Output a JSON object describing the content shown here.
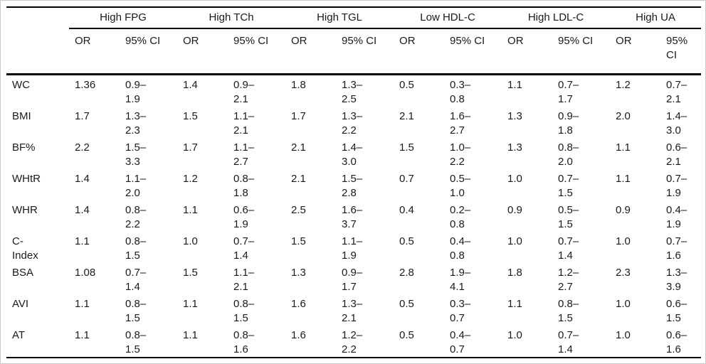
{
  "chart_data": {
    "type": "table",
    "title": "",
    "column_groups": [
      "High FPG",
      "High TCh",
      "High TGL",
      "Low HDL-C",
      "High LDL-C",
      "High UA"
    ],
    "subcolumns": [
      "OR",
      "95% CI"
    ],
    "rows": [
      {
        "label": "WC",
        "cells": [
          {
            "or": "1.36",
            "ci": "0.9–1.9"
          },
          {
            "or": "1.4",
            "ci": "0.9–2.1"
          },
          {
            "or": "1.8",
            "ci": "1.3–2.5"
          },
          {
            "or": "0.5",
            "ci": "0.3–0.8"
          },
          {
            "or": "1.1",
            "ci": "0.7–1.7"
          },
          {
            "or": "1.2",
            "ci": "0.7–2.1"
          }
        ]
      },
      {
        "label": "BMI",
        "cells": [
          {
            "or": "1.7",
            "ci": "1.3–2.3"
          },
          {
            "or": "1.5",
            "ci": "1.1–2.1"
          },
          {
            "or": "1.7",
            "ci": "1.3–2.2"
          },
          {
            "or": "2.1",
            "ci": "1.6–2.7"
          },
          {
            "or": "1.3",
            "ci": "0.9–1.8"
          },
          {
            "or": "2.0",
            "ci": "1.4–3.0"
          }
        ]
      },
      {
        "label": "BF%",
        "cells": [
          {
            "or": "2.2",
            "ci": "1.5–3.3"
          },
          {
            "or": "1.7",
            "ci": "1.1–2.7"
          },
          {
            "or": "2.1",
            "ci": "1.4–3.0"
          },
          {
            "or": "1.5",
            "ci": "1.0–2.2"
          },
          {
            "or": "1.3",
            "ci": "0.8–2.0"
          },
          {
            "or": "1.1",
            "ci": "0.6–2.1"
          }
        ]
      },
      {
        "label": "WHtR",
        "cells": [
          {
            "or": "1.4",
            "ci": "1.1–2.0"
          },
          {
            "or": "1.2",
            "ci": "0.8–1.8"
          },
          {
            "or": "2.1",
            "ci": "1.5–2.8"
          },
          {
            "or": "0.7",
            "ci": "0.5–1.0"
          },
          {
            "or": "1.0",
            "ci": "0.7–1.5"
          },
          {
            "or": "1.1",
            "ci": "0.7–1.9"
          }
        ]
      },
      {
        "label": "WHR",
        "cells": [
          {
            "or": "1.4",
            "ci": "0.8–2.2"
          },
          {
            "or": "1.1",
            "ci": "0.6–1.9"
          },
          {
            "or": "2.5",
            "ci": "1.6–3.7"
          },
          {
            "or": "0.4",
            "ci": "0.2–0.8"
          },
          {
            "or": "0.9",
            "ci": "0.5–1.5"
          },
          {
            "or": "0.9",
            "ci": "0.4–1.9"
          }
        ]
      },
      {
        "label": "C-Index",
        "cells": [
          {
            "or": "1.1",
            "ci": "0.8–1.5"
          },
          {
            "or": "1.0",
            "ci": "0.7–1.4"
          },
          {
            "or": "1.5",
            "ci": "1.1–1.9"
          },
          {
            "or": "0.5",
            "ci": "0.4–0.8"
          },
          {
            "or": "1.0",
            "ci": "0.7–1.4"
          },
          {
            "or": "1.0",
            "ci": "0.7–1.6"
          }
        ]
      },
      {
        "label": "BSA",
        "cells": [
          {
            "or": "1.08",
            "ci": "0.7–1.4"
          },
          {
            "or": "1.5",
            "ci": "1.1–2.1"
          },
          {
            "or": "1.3",
            "ci": "0.9–1.7"
          },
          {
            "or": "2.8",
            "ci": "1.9–4.1"
          },
          {
            "or": "1.8",
            "ci": "1.2–2.7"
          },
          {
            "or": "2.3",
            "ci": "1.3–3.9"
          }
        ]
      },
      {
        "label": "AVI",
        "cells": [
          {
            "or": "1.1",
            "ci": "0.8–1.5"
          },
          {
            "or": "1.1",
            "ci": "0.8–1.5"
          },
          {
            "or": "1.6",
            "ci": "1.3–2.1"
          },
          {
            "or": "0.5",
            "ci": "0.3–0.7"
          },
          {
            "or": "1.1",
            "ci": "0.8–1.5"
          },
          {
            "or": "1.0",
            "ci": "0.6–1.5"
          }
        ]
      },
      {
        "label": "AT",
        "cells": [
          {
            "or": "1.1",
            "ci": "0.8–1.5"
          },
          {
            "or": "1.1",
            "ci": "0.8–1.6"
          },
          {
            "or": "1.6",
            "ci": "1.2–2.2"
          },
          {
            "or": "0.5",
            "ci": "0.4–0.7"
          },
          {
            "or": "1.0",
            "ci": "0.7–1.4"
          },
          {
            "or": "1.0",
            "ci": "0.6–1.6"
          }
        ]
      }
    ]
  }
}
